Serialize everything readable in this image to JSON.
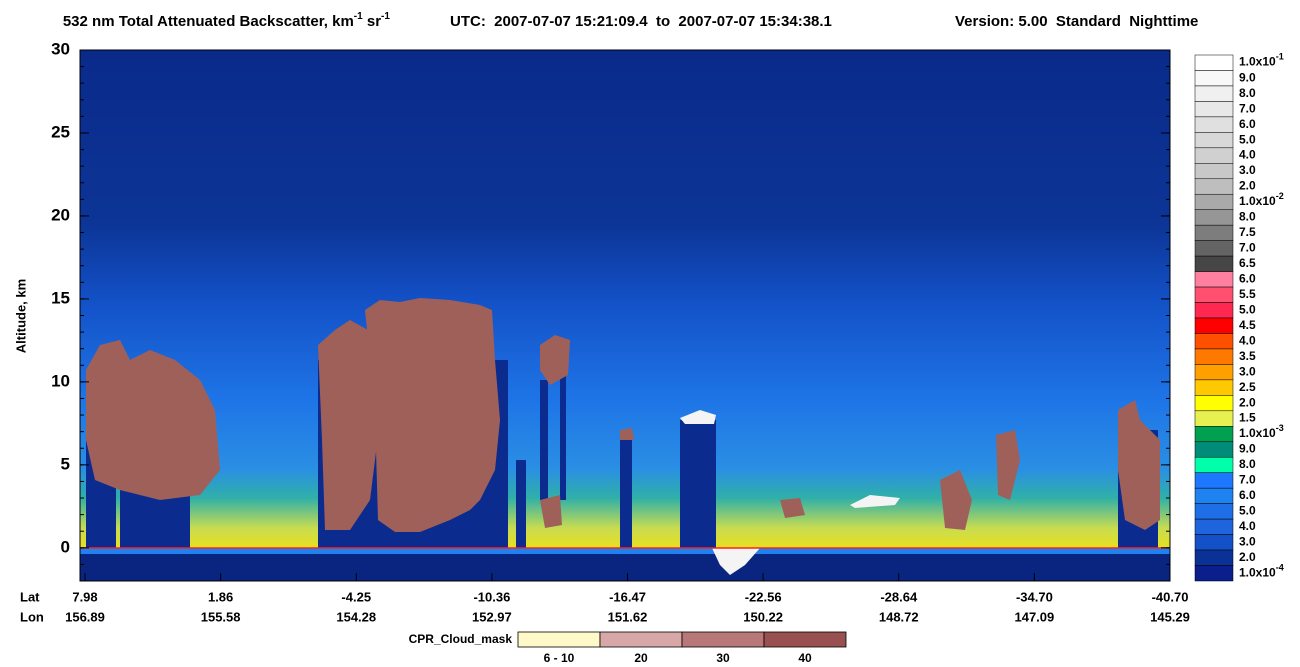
{
  "chart_data": {
    "type": "curtain",
    "title": [
      {
        "text": "532 nm Total Attenuated Backscatter, km",
        "sup": "-1"
      },
      {
        "text": " sr",
        "sup": "-1"
      }
    ],
    "utc": "UTC:  2007-07-07 15:21:09.4  to  2007-07-07 15:34:38.1",
    "version": "Version: 5.00  Standard  Nighttime",
    "ylabel": "Altitude, km",
    "ylim": [
      -2,
      30
    ],
    "yticks": [
      0,
      5,
      10,
      15,
      20,
      25,
      30
    ],
    "x_rows": [
      {
        "name": "Lat",
        "labels": [
          "7.98",
          "1.86",
          "-4.25",
          "-10.36",
          "-16.47",
          "-22.56",
          "-28.64",
          "-34.70",
          "-40.70"
        ]
      },
      {
        "name": "Lon",
        "labels": [
          "156.89",
          "155.58",
          "154.28",
          "152.97",
          "151.62",
          "150.22",
          "148.72",
          "147.09",
          "145.29"
        ]
      }
    ],
    "colorbar": {
      "labels": [
        {
          "text": "1.0x10",
          "sup": "-1"
        },
        "9.0",
        "8.0",
        "7.0",
        "6.0",
        "5.0",
        "4.0",
        "3.0",
        "2.0",
        {
          "text": "1.0x10",
          "sup": "-2"
        },
        "8.0",
        "7.5",
        "7.0",
        "6.5",
        "6.0",
        "5.5",
        "5.0",
        "4.5",
        "4.0",
        "3.5",
        "3.0",
        "2.5",
        "2.0",
        "1.5",
        {
          "text": "1.0x10",
          "sup": "-3"
        },
        "9.0",
        "8.0",
        "7.0",
        "6.0",
        "5.0",
        "4.0",
        "3.0",
        "2.0",
        {
          "text": "1.0x10",
          "sup": "-4"
        }
      ],
      "colors": [
        "#ffffff",
        "#f8f8f8",
        "#f0f0f0",
        "#e8e8e8",
        "#e0e0e0",
        "#d8d8d8",
        "#d0d0d0",
        "#c8c8c8",
        "#bebebe",
        "#aaaaaa",
        "#969696",
        "#7d7d7d",
        "#646464",
        "#464646",
        "#ff7fa0",
        "#ff5070",
        "#ff2850",
        "#ff0000",
        "#ff5000",
        "#ff7800",
        "#ffa000",
        "#ffc800",
        "#ffff00",
        "#e6f050",
        "#00a050",
        "#008c78",
        "#00ffaa",
        "#1e78ff",
        "#1e82f0",
        "#1e6ee6",
        "#1e64dc",
        "#1450c8",
        "#0a3296",
        "#0a1e8c"
      ]
    },
    "cloud_mask": {
      "name": "CPR_Cloud_mask",
      "labels": [
        "6 - 10",
        "20",
        "30",
        "40"
      ],
      "colors": [
        "#fff8c8",
        "#d8a8a8",
        "#b87878",
        "#985050"
      ]
    }
  }
}
